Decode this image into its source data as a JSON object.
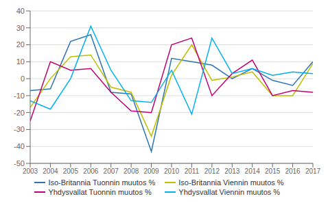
{
  "chart_data": {
    "type": "line",
    "x": [
      2003,
      2004,
      2005,
      2006,
      2007,
      2008,
      2009,
      2010,
      2011,
      2012,
      2013,
      2014,
      2015,
      2016,
      2017
    ],
    "series": [
      {
        "name": "Iso-Britannia Tuonnin muutos %",
        "color": "#2E74B5",
        "values": [
          -7,
          -6,
          22,
          26,
          -8,
          -9,
          -43,
          12,
          10,
          8,
          0,
          6,
          -1,
          -4,
          10
        ]
      },
      {
        "name": "Iso-Britannia Viennin muutos %",
        "color": "#BFBF00",
        "values": [
          -17,
          0,
          13,
          14,
          -5,
          -8,
          -34,
          2,
          20,
          -1,
          1,
          4,
          -10,
          -10,
          9
        ]
      },
      {
        "name": "Yhdysvallat Tuonnin muutos %",
        "color": "#C00073",
        "values": [
          -25,
          10,
          5,
          6,
          -8,
          -19,
          -20,
          20,
          24,
          -10,
          3,
          11,
          -10,
          -7,
          -8
        ]
      },
      {
        "name": "Yhdysvallat Viennin muutos %",
        "color": "#00B0F0",
        "values": [
          -13,
          -18,
          0,
          31,
          5,
          -13,
          -14,
          5,
          -21,
          24,
          3,
          6,
          2,
          4,
          3
        ]
      }
    ],
    "xlim": [
      2003,
      2017
    ],
    "xticks": [
      2003,
      2004,
      2005,
      2006,
      2007,
      2008,
      2009,
      2010,
      2011,
      2012,
      2013,
      2014,
      2015,
      2016,
      2017
    ],
    "ylim": [
      -50,
      40
    ],
    "yticks": [
      -50,
      -40,
      -30,
      -20,
      -10,
      0,
      10,
      20,
      30,
      40
    ],
    "grid": true,
    "legend": "bottom"
  }
}
